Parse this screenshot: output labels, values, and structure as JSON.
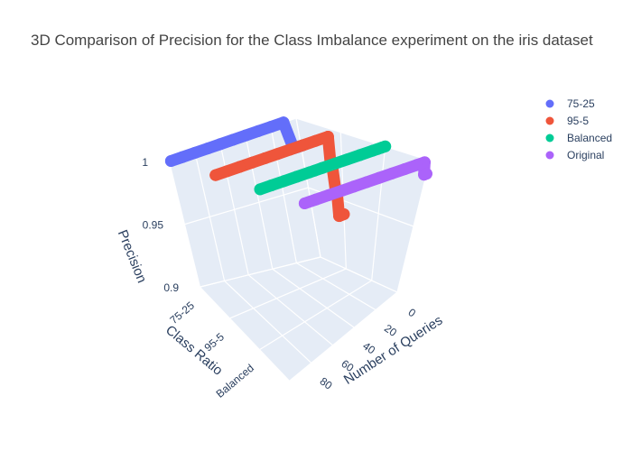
{
  "chart_data": {
    "type": "scatter3d",
    "title": "3D Comparison of Precision for the Class Imbalance experiment on the iris dataset",
    "axes": {
      "x": {
        "label": "Number of Queries",
        "ticks": [
          "0",
          "20",
          "40",
          "60",
          "80"
        ]
      },
      "y": {
        "label": "Class Ratio",
        "categories": [
          "75-25",
          "95-5",
          "Balanced",
          "Original"
        ]
      },
      "z": {
        "label": "Precision",
        "ticks": [
          "0.9",
          "0.95",
          "1"
        ],
        "range": [
          0.9,
          1.0
        ]
      }
    },
    "series": [
      {
        "name": "75-25",
        "color": "#636efa",
        "points": [
          [
            0,
            0.98
          ],
          [
            3,
            0.98
          ],
          [
            6,
            0.98
          ],
          [
            10,
            1
          ],
          [
            20,
            1
          ],
          [
            30,
            1
          ],
          [
            40,
            1
          ],
          [
            50,
            1
          ],
          [
            60,
            1
          ],
          [
            70,
            1
          ],
          [
            80,
            1
          ],
          [
            90,
            1
          ],
          [
            99,
            1
          ]
        ]
      },
      {
        "name": "95-5",
        "color": "#ef553b",
        "points": [
          [
            0,
            0.94
          ],
          [
            2,
            0.94
          ],
          [
            4,
            0.94
          ],
          [
            5,
            0.96
          ],
          [
            6,
            0.96
          ],
          [
            8,
            0.98
          ],
          [
            9,
            0.98
          ],
          [
            10,
            1
          ],
          [
            20,
            1
          ],
          [
            30,
            1
          ],
          [
            40,
            1
          ],
          [
            50,
            1
          ],
          [
            60,
            1
          ],
          [
            70,
            1
          ],
          [
            80,
            1
          ],
          [
            90,
            1
          ],
          [
            99,
            1
          ]
        ]
      },
      {
        "name": "Balanced",
        "color": "#00cc96",
        "points": [
          [
            0,
            1
          ],
          [
            3,
            1
          ],
          [
            6,
            1
          ],
          [
            10,
            1
          ],
          [
            20,
            1
          ],
          [
            30,
            1
          ],
          [
            40,
            1
          ],
          [
            50,
            1
          ],
          [
            56,
            1
          ],
          [
            60,
            1
          ],
          [
            70,
            1
          ],
          [
            80,
            1
          ],
          [
            90,
            1
          ],
          [
            99,
            1
          ]
        ]
      },
      {
        "name": "Original",
        "color": "#ab63fa",
        "points": [
          [
            0,
            0.99
          ],
          [
            2,
            0.99
          ],
          [
            4,
            1
          ],
          [
            10,
            1
          ],
          [
            20,
            1
          ],
          [
            30,
            1
          ],
          [
            40,
            1
          ],
          [
            50,
            1
          ],
          [
            60,
            1
          ],
          [
            70,
            1
          ],
          [
            80,
            1
          ],
          [
            90,
            1
          ],
          [
            99,
            1
          ]
        ]
      }
    ],
    "legend_position": "top-right"
  }
}
